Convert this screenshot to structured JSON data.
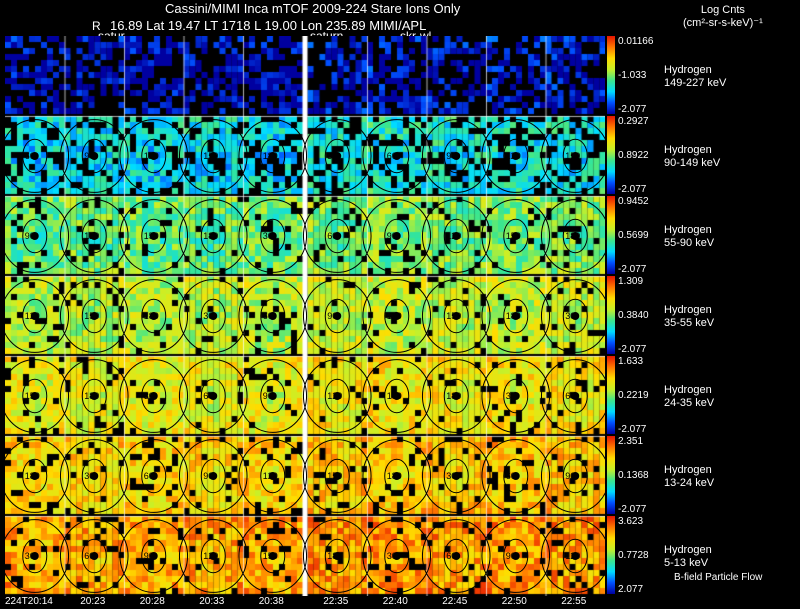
{
  "header": {
    "title": "Cassini/MIMI Inca mTOF   2009-224    Stare    Ions Only",
    "subtitle": "16.89 Lat 19.47 LT 1718 L          19.00 Lon          235.89   MIMI/APL",
    "markers": [
      "R",
      "satur",
      "saturn",
      "skr-wl"
    ]
  },
  "colorbar_header": {
    "line1": "Log Cnts",
    "line2": "(cm²-sr-s-keV)⁻¹"
  },
  "panels": [
    {
      "species": "Hydrogen",
      "energy": "149-227 keV",
      "max": "0.01166",
      "mid": "-1.033",
      "min": "-2.077",
      "level": 0.05
    },
    {
      "species": "Hydrogen",
      "energy": "90-149 keV",
      "max": "0.2927",
      "mid": "0.8922",
      "min": "-2.077",
      "level": 0.35
    },
    {
      "species": "Hydrogen",
      "energy": "55-90 keV",
      "max": "0.9452",
      "mid": "0.5699",
      "min": "-2.077",
      "level": 0.5
    },
    {
      "species": "Hydrogen",
      "energy": "35-55 keV",
      "max": "1.309",
      "mid": "0.3840",
      "min": "-2.077",
      "level": 0.6
    },
    {
      "species": "Hydrogen",
      "energy": "24-35 keV",
      "max": "1.633",
      "mid": "0.2219",
      "min": "-2.077",
      "level": 0.68
    },
    {
      "species": "Hydrogen",
      "energy": "13-24 keV",
      "max": "2.351",
      "mid": "0.1368",
      "min": "-2.077",
      "level": 0.74
    },
    {
      "species": "Hydrogen",
      "energy": "5-13 keV",
      "max": "3.623",
      "mid": "0.7728",
      "min": "2.077",
      "level": 0.82
    }
  ],
  "contour_labels": [
    "30",
    "60",
    "90",
    "120",
    "150",
    "180"
  ],
  "time_labels": [
    "224T20:14",
    "20:23",
    "20:28",
    "20:33",
    "20:38",
    "22:35",
    "22:40",
    "22:45",
    "22:50",
    "22:55"
  ],
  "footer": "B-field Particle Flow",
  "colors": {
    "background": "#000000",
    "separator": "#ffffff",
    "contour": "#000000"
  }
}
